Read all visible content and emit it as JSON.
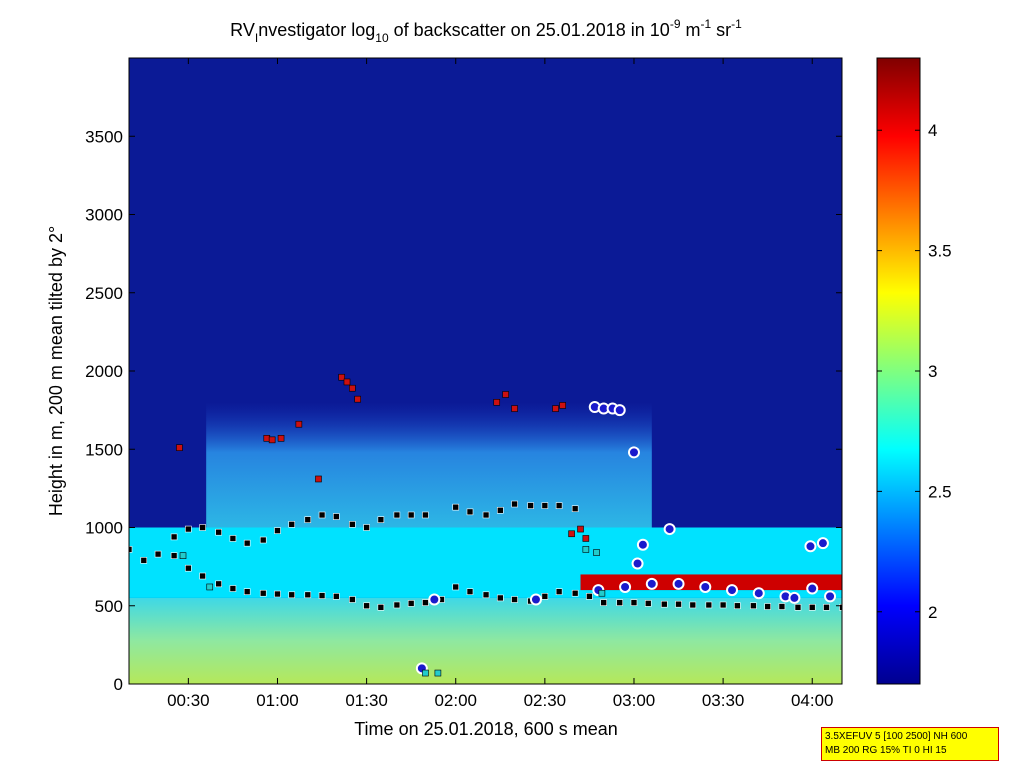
{
  "chart_data": {
    "type": "heatmap",
    "title": {
      "prefix": "RV",
      "sub": "I",
      "mid": "nvestigator log",
      "log_base": "10",
      "rest": " of backscatter on 25.01.2018 in 10",
      "exp1": "-9",
      "unit_m": " m",
      "exp2": "-1",
      "unit_sr": " sr",
      "exp3": "-1"
    },
    "xlabel": "Time on 25.01.2018, 600 s mean",
    "ylabel": "Height in m, 200 m mean tilted by 2°",
    "xlim": [
      0.167,
      4.167
    ],
    "ylim": [
      0,
      4000
    ],
    "x_ticks": [
      {
        "v": 0.5,
        "label": "00:30"
      },
      {
        "v": 1.0,
        "label": "01:00"
      },
      {
        "v": 1.5,
        "label": "01:30"
      },
      {
        "v": 2.0,
        "label": "02:00"
      },
      {
        "v": 2.5,
        "label": "02:30"
      },
      {
        "v": 3.0,
        "label": "03:00"
      },
      {
        "v": 3.5,
        "label": "03:30"
      },
      {
        "v": 4.0,
        "label": "04:00"
      }
    ],
    "y_ticks": [
      {
        "v": 0,
        "label": "0"
      },
      {
        "v": 500,
        "label": "500"
      },
      {
        "v": 1000,
        "label": "1000"
      },
      {
        "v": 1500,
        "label": "1500"
      },
      {
        "v": 2000,
        "label": "2000"
      },
      {
        "v": 2500,
        "label": "2500"
      },
      {
        "v": 3000,
        "label": "3000"
      },
      {
        "v": 3500,
        "label": "3500"
      }
    ],
    "colorbar": {
      "clim": [
        1.7,
        4.3
      ],
      "ticks": [
        {
          "v": 2,
          "label": "2"
        },
        {
          "v": 2.5,
          "label": "2.5"
        },
        {
          "v": 3,
          "label": "3"
        },
        {
          "v": 3.5,
          "label": "3.5"
        },
        {
          "v": 4,
          "label": "4"
        }
      ],
      "colormap": "jet"
    },
    "regions": [
      {
        "name": "surface-layer",
        "x0": 0.167,
        "x1": 4.167,
        "y0": 0,
        "y1": 550,
        "value": 3.05
      },
      {
        "name": "boundary-layer",
        "x0": 0.167,
        "x1": 4.167,
        "y0": 550,
        "y1": 1000,
        "value": 2.6
      },
      {
        "name": "aerosol-layer",
        "x0": 0.6,
        "x1": 3.1,
        "y0": 1000,
        "y1": 1800,
        "value": 2.35
      },
      {
        "name": "thin-upper-layer",
        "x0": 2.7,
        "x1": 4.167,
        "y0": 600,
        "y1": 700,
        "value": 4.1
      }
    ],
    "series": [
      {
        "marker": "square",
        "color": "#000000",
        "x": [
          0.167,
          0.25,
          0.33,
          0.42,
          0.5,
          0.58,
          0.67,
          0.75,
          0.83,
          0.92,
          1.0,
          1.08,
          1.17,
          1.25,
          1.33,
          1.42,
          1.5,
          1.58,
          1.67,
          1.75,
          1.83,
          2.0,
          2.08,
          2.17,
          2.25,
          2.33,
          2.42,
          2.5,
          2.58,
          2.67
        ],
        "y": [
          860,
          790,
          830,
          940,
          990,
          1000,
          970,
          930,
          900,
          920,
          980,
          1020,
          1050,
          1080,
          1070,
          1020,
          1000,
          1050,
          1080,
          1080,
          1080,
          1130,
          1100,
          1080,
          1110,
          1150,
          1140,
          1140,
          1140,
          1120
        ]
      },
      {
        "marker": "square",
        "color": "#000000",
        "x": [
          0.42,
          0.5,
          0.58,
          0.67,
          0.75,
          0.83,
          0.92,
          1.0,
          1.08,
          1.17,
          1.25,
          1.33,
          1.42,
          1.5,
          1.58,
          1.67,
          1.75,
          1.83,
          1.92,
          2.0,
          2.08,
          2.17,
          2.25,
          2.33,
          2.42,
          2.5,
          2.58,
          2.67,
          2.75,
          2.83,
          2.92,
          3.0,
          3.08,
          3.17,
          3.25,
          3.33,
          3.42,
          3.5,
          3.58,
          3.67,
          3.75,
          3.83,
          3.92,
          4.0,
          4.08,
          4.17
        ],
        "y": [
          820,
          740,
          690,
          640,
          610,
          590,
          580,
          575,
          570,
          570,
          565,
          560,
          540,
          500,
          490,
          505,
          515,
          520,
          540,
          620,
          590,
          570,
          550,
          540,
          530,
          560,
          590,
          580,
          560,
          520,
          520,
          520,
          515,
          510,
          510,
          505,
          505,
          505,
          500,
          500,
          495,
          495,
          490,
          490,
          490,
          490
        ]
      },
      {
        "marker": "circle",
        "color": "#1a1acc",
        "x": [
          1.81,
          1.88,
          2.45,
          2.78,
          2.83,
          2.88,
          2.92,
          3.0,
          3.02,
          3.05,
          3.2,
          3.99,
          4.06,
          2.8,
          2.95,
          3.1,
          3.25,
          3.4,
          3.55,
          3.7,
          3.85,
          4.0,
          4.1,
          3.9
        ],
        "y": [
          100,
          540,
          540,
          1770,
          1760,
          1760,
          1750,
          1480,
          770,
          890,
          990,
          880,
          900,
          600,
          620,
          640,
          640,
          620,
          600,
          580,
          560,
          610,
          560,
          550
        ]
      },
      {
        "marker": "square",
        "color": "#cc1010",
        "x": [
          0.45,
          0.94,
          0.97,
          1.02,
          1.12,
          1.23,
          1.36,
          1.39,
          1.42,
          1.45,
          2.23,
          2.28,
          2.33,
          2.56,
          2.6,
          2.65,
          2.7,
          2.73
        ],
        "y": [
          1510,
          1570,
          1560,
          1570,
          1660,
          1310,
          1960,
          1930,
          1890,
          1820,
          1800,
          1850,
          1760,
          1760,
          1780,
          960,
          990,
          930
        ]
      },
      {
        "marker": "square",
        "color": "#22cccc",
        "x": [
          0.47,
          0.62,
          1.83,
          1.9,
          2.73,
          2.79,
          2.82
        ],
        "y": [
          820,
          620,
          70,
          70,
          860,
          840,
          580
        ]
      }
    ]
  },
  "legend_box": {
    "line1": "3.5XEFUV 5 [100 2500] NH 600",
    "line2": "MB 200 RG 15% TI 0 HI 15"
  },
  "colors": {
    "background_low": "#0b1a96",
    "frame": "#000000",
    "info_box_bg": "#ffff00",
    "info_box_border": "#cc0000"
  }
}
